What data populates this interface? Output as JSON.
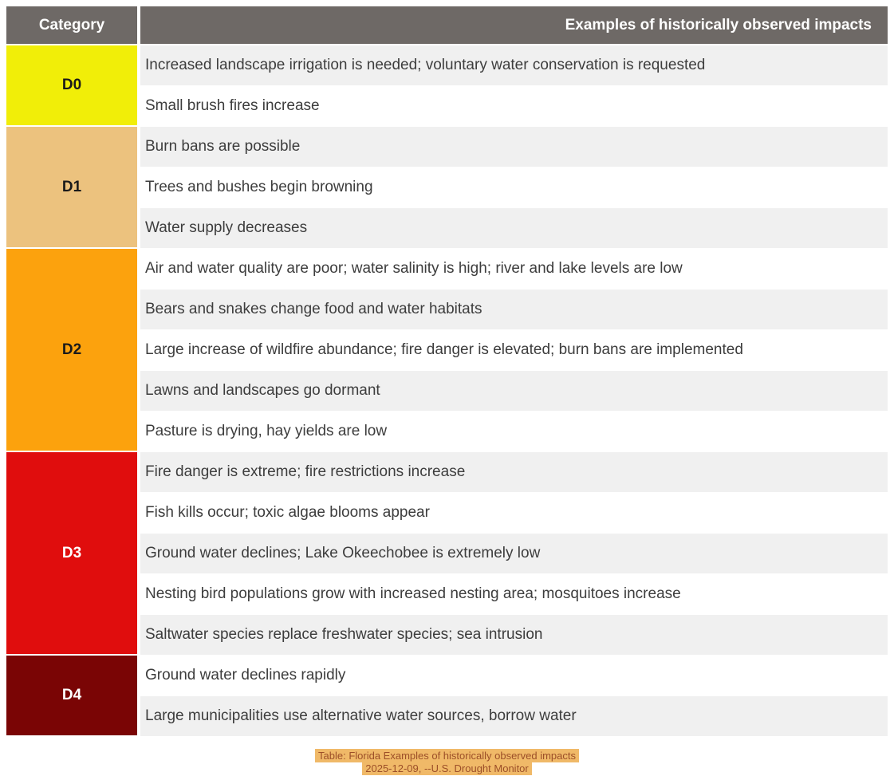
{
  "colors": {
    "header_bg": "#6e6966",
    "row_shade": "#f0f0f0",
    "row_plain": "#ffffff",
    "row_text": "#3d3d3d",
    "caption_bg": "#f0b968",
    "caption_text": "#9c4f28"
  },
  "chart_data": {
    "type": "table",
    "columns": [
      "Category",
      "Examples of historically observed impacts"
    ],
    "groups": [
      {
        "category": "D0",
        "color": "#f1ee08",
        "label_color": "#1a1a1a",
        "impacts": [
          "Increased landscape irrigation is needed; voluntary water conservation is requested",
          "Small brush fires increase"
        ]
      },
      {
        "category": "D1",
        "color": "#ecc27e",
        "label_color": "#1a1a1a",
        "impacts": [
          "Burn bans are possible",
          "Trees and bushes begin browning",
          "Water supply decreases"
        ]
      },
      {
        "category": "D2",
        "color": "#fca20d",
        "label_color": "#1a1a1a",
        "impacts": [
          "Air and water quality are poor; water salinity is high; river and lake levels are low",
          "Bears and snakes change food and water habitats",
          "Large increase of wildfire abundance; fire danger is elevated; burn bans are implemented",
          "Lawns and landscapes go dormant",
          "Pasture is drying, hay yields are low"
        ]
      },
      {
        "category": "D3",
        "color": "#e00d0d",
        "label_color": "#ffffff",
        "impacts": [
          "Fire danger is extreme; fire restrictions increase",
          "Fish kills occur; toxic algae blooms appear",
          "Ground water declines; Lake Okeechobee is extremely low",
          "Nesting bird populations grow with increased nesting area; mosquitoes increase",
          "Saltwater species replace freshwater species; sea intrusion"
        ]
      },
      {
        "category": "D4",
        "color": "#7a0505",
        "label_color": "#ffffff",
        "impacts": [
          "Ground water declines rapidly",
          "Large municipalities use alternative water sources, borrow water"
        ]
      }
    ]
  },
  "caption": {
    "line1": "Table: Florida Examples of historically observed impacts",
    "line2": "2025-12-09, --U.S. Drought Monitor"
  }
}
